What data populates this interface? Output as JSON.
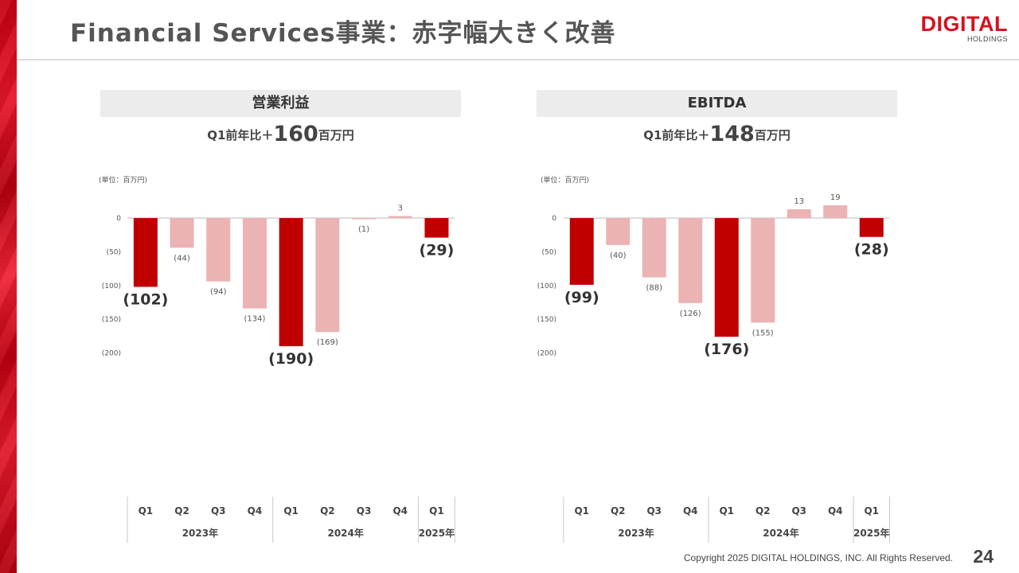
{
  "page": {
    "title": "Financial Services事業：赤字幅大きく改善",
    "logo_main": "DIGITAL",
    "logo_sub": "HOLDINGS",
    "footer": "Copyright 2025 DIGITAL HOLDINGS, INC. All Rights Reserved.",
    "page_number": "24"
  },
  "colors": {
    "accent": "#c00000",
    "light_bar": "#ebb3b3",
    "brand": "#d7101f"
  },
  "chart_data": [
    {
      "type": "bar",
      "title": "営業利益",
      "subtitle_prefix": "Q1前年比＋",
      "subtitle_value": "160",
      "subtitle_suffix": "百万円",
      "unit_label": "(単位：百万円)",
      "categories": [
        "Q1",
        "Q2",
        "Q3",
        "Q4",
        "Q1",
        "Q2",
        "Q3",
        "Q4",
        "Q1"
      ],
      "years": [
        {
          "label": "2023年",
          "span": 4
        },
        {
          "label": "2024年",
          "span": 4
        },
        {
          "label": "2025年",
          "span": 1
        }
      ],
      "values": [
        -102,
        -44,
        -94,
        -134,
        -190,
        -169,
        -1,
        3,
        -29
      ],
      "value_labels": [
        "(102)",
        "(44)",
        "(94)",
        "(134)",
        "(190)",
        "(169)",
        "(1)",
        "3",
        "(29)"
      ],
      "highlight": [
        true,
        false,
        false,
        false,
        true,
        false,
        false,
        false,
        true
      ],
      "yticks": [
        0,
        -50,
        -100,
        -150,
        -200
      ],
      "ytick_labels": [
        "0",
        "(50)",
        "(100)",
        "(150)",
        "(200)"
      ],
      "ylim": [
        -200,
        0
      ]
    },
    {
      "type": "bar",
      "title": "EBITDA",
      "subtitle_prefix": "Q1前年比＋",
      "subtitle_value": "148",
      "subtitle_suffix": "百万円",
      "unit_label": "(単位：百万円)",
      "categories": [
        "Q1",
        "Q2",
        "Q3",
        "Q4",
        "Q1",
        "Q2",
        "Q3",
        "Q4",
        "Q1"
      ],
      "years": [
        {
          "label": "2023年",
          "span": 4
        },
        {
          "label": "2024年",
          "span": 4
        },
        {
          "label": "2025年",
          "span": 1
        }
      ],
      "values": [
        -99,
        -40,
        -88,
        -126,
        -176,
        -155,
        13,
        19,
        -28
      ],
      "value_labels": [
        "(99)",
        "(40)",
        "(88)",
        "(126)",
        "(176)",
        "(155)",
        "13",
        "19",
        "(28)"
      ],
      "highlight": [
        true,
        false,
        false,
        false,
        true,
        false,
        false,
        false,
        true
      ],
      "yticks": [
        0,
        -50,
        -100,
        -150,
        -200
      ],
      "ytick_labels": [
        "0",
        "(50)",
        "(100)",
        "(150)",
        "(200)"
      ],
      "ylim": [
        -200,
        0
      ]
    }
  ]
}
